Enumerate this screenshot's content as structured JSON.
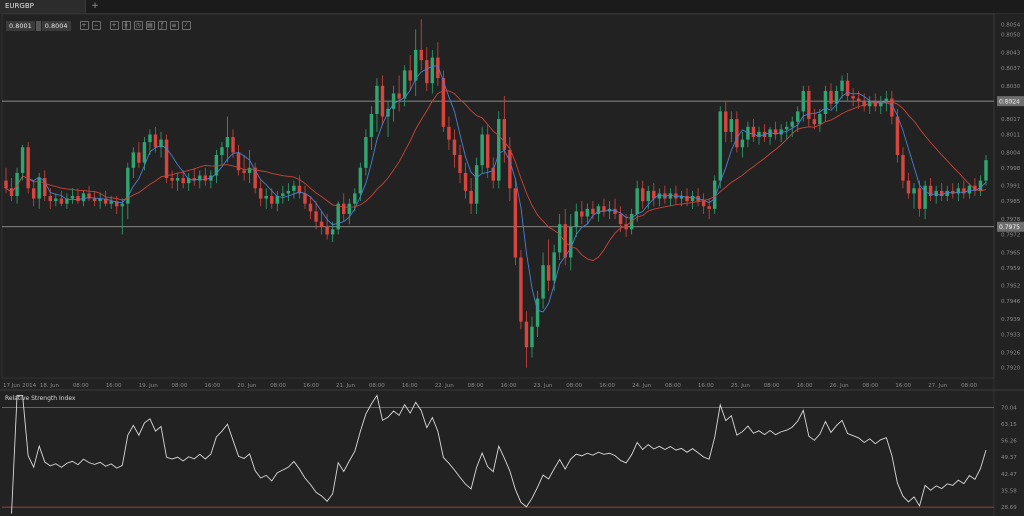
{
  "window": {
    "tab_label": "EURGBP",
    "add_tab_label": "+"
  },
  "toolbar": {
    "bid": "0.8001",
    "ask": "0.8004",
    "tools": [
      {
        "icon": "zoom-in-icon",
        "glyph": "+"
      },
      {
        "icon": "zoom-out-icon",
        "glyph": "−"
      },
      {
        "icon": "crosshair-icon",
        "glyph": "+"
      },
      {
        "icon": "candles-icon",
        "glyph": "╫"
      },
      {
        "icon": "timeframe-icon",
        "glyph": "◷"
      },
      {
        "icon": "template-icon",
        "glyph": "▤"
      },
      {
        "icon": "indicators-icon",
        "glyph": "ƒ"
      },
      {
        "icon": "objects-icon",
        "glyph": "≡"
      },
      {
        "icon": "draw-icon",
        "glyph": "⁄"
      }
    ]
  },
  "colors": {
    "background": "#222222",
    "bull": "#2fa672",
    "bear": "#d8453d",
    "ma_fast": "#4a7fd0",
    "ma_slow": "#c8453a",
    "rsi_line": "#d9d9d9",
    "rsi_upper": "#4e9a5a",
    "rsi_lower": "#c24a3c",
    "hline": "#a9a9a9"
  },
  "chart_data": [
    {
      "type": "candlestick",
      "title": "",
      "symbol": "EURGBP",
      "x_labels": [
        "17 Jun 2014",
        "18. Jun",
        "08:00",
        "16:00",
        "19. Jun",
        "08:00",
        "16:00",
        "20. Jun",
        "08:00",
        "16:00",
        "21. Jun",
        "08:00",
        "16:00",
        "22. Jun",
        "08:00",
        "16:00",
        "23. Jun",
        "08:00",
        "16:00",
        "24. Jun",
        "08:00",
        "16:00",
        "25. Jun",
        "08:00",
        "16:00",
        "26. Jun",
        "08:00",
        "16:00",
        "27. Jun",
        "08:00"
      ],
      "y_ticks": [
        "0.8054",
        "0.8050",
        "0.8043",
        "0.8037",
        "0.8030",
        "0.8024",
        "0.8017",
        "0.8011",
        "0.8004",
        "0.7998",
        "0.7991",
        "0.7985",
        "0.7978",
        "0.7972",
        "0.7965",
        "0.7959",
        "0.7952",
        "0.7946",
        "0.7939",
        "0.7933",
        "0.7926",
        "0.7920"
      ],
      "ylim": [
        0.7916,
        0.8058
      ],
      "horizontal_lines": [
        {
          "value": 0.8024,
          "label": "0.8024"
        },
        {
          "value": 0.7975,
          "label": "0.7975"
        }
      ],
      "ohlc": [
        [
          0.7993,
          0.7998,
          0.7988,
          0.799
        ],
        [
          0.799,
          0.7994,
          0.7985,
          0.7987
        ],
        [
          0.7987,
          0.7998,
          0.7984,
          0.7996
        ],
        [
          0.7996,
          0.8007,
          0.7993,
          0.8006
        ],
        [
          0.8006,
          0.8008,
          0.7988,
          0.799
        ],
        [
          0.799,
          0.7993,
          0.7983,
          0.7986
        ],
        [
          0.7986,
          0.7996,
          0.7982,
          0.7994
        ],
        [
          0.7994,
          0.7997,
          0.7985,
          0.7987
        ],
        [
          0.7987,
          0.799,
          0.7982,
          0.7985
        ],
        [
          0.7985,
          0.7988,
          0.7983,
          0.7986
        ],
        [
          0.7986,
          0.7989,
          0.7983,
          0.7984
        ],
        [
          0.7984,
          0.7988,
          0.7982,
          0.7986
        ],
        [
          0.7986,
          0.799,
          0.7984,
          0.7987
        ],
        [
          0.7987,
          0.799,
          0.7984,
          0.7985
        ],
        [
          0.7985,
          0.7989,
          0.7983,
          0.7988
        ],
        [
          0.7988,
          0.7991,
          0.7985,
          0.7986
        ],
        [
          0.7986,
          0.7989,
          0.7983,
          0.7985
        ],
        [
          0.7985,
          0.7988,
          0.7982,
          0.7986
        ],
        [
          0.7986,
          0.7989,
          0.7983,
          0.7984
        ],
        [
          0.7984,
          0.7987,
          0.7982,
          0.7985
        ],
        [
          0.7985,
          0.7987,
          0.798,
          0.7983
        ],
        [
          0.7983,
          0.7986,
          0.7972,
          0.7984
        ],
        [
          0.7984,
          0.8,
          0.7978,
          0.7998
        ],
        [
          0.7998,
          0.8006,
          0.7994,
          0.8004
        ],
        [
          0.8004,
          0.8008,
          0.7998,
          0.8
        ],
        [
          0.8,
          0.801,
          0.7997,
          0.8008
        ],
        [
          0.8008,
          0.8013,
          0.8003,
          0.8011
        ],
        [
          0.8011,
          0.8014,
          0.8004,
          0.8006
        ],
        [
          0.8006,
          0.8012,
          0.8002,
          0.8009
        ],
        [
          0.8009,
          0.8011,
          0.7992,
          0.7994
        ],
        [
          0.7994,
          0.7997,
          0.799,
          0.7993
        ],
        [
          0.7993,
          0.7996,
          0.7989,
          0.7994
        ],
        [
          0.7994,
          0.7997,
          0.799,
          0.7992
        ],
        [
          0.7992,
          0.7996,
          0.7989,
          0.7994
        ],
        [
          0.7994,
          0.7998,
          0.7991,
          0.7993
        ],
        [
          0.7993,
          0.7997,
          0.799,
          0.7995
        ],
        [
          0.7995,
          0.7998,
          0.7991,
          0.7993
        ],
        [
          0.7993,
          0.7997,
          0.799,
          0.7995
        ],
        [
          0.7995,
          0.8005,
          0.7992,
          0.8003
        ],
        [
          0.8003,
          0.8008,
          0.7999,
          0.8006
        ],
        [
          0.8006,
          0.8018,
          0.8,
          0.801
        ],
        [
          0.801,
          0.8013,
          0.8002,
          0.8004
        ],
        [
          0.8004,
          0.8007,
          0.7995,
          0.7997
        ],
        [
          0.7997,
          0.8003,
          0.7993,
          0.7996
        ],
        [
          0.7996,
          0.8005,
          0.7992,
          0.7998
        ],
        [
          0.7998,
          0.8,
          0.7988,
          0.799
        ],
        [
          0.799,
          0.7993,
          0.7983,
          0.7986
        ],
        [
          0.7986,
          0.799,
          0.7982,
          0.7987
        ],
        [
          0.7987,
          0.799,
          0.7982,
          0.7984
        ],
        [
          0.7984,
          0.7989,
          0.7981,
          0.7987
        ],
        [
          0.7987,
          0.7991,
          0.7984,
          0.7988
        ],
        [
          0.7988,
          0.7992,
          0.7985,
          0.7989
        ],
        [
          0.7989,
          0.7993,
          0.7986,
          0.7991
        ],
        [
          0.7991,
          0.7995,
          0.7986,
          0.7988
        ],
        [
          0.7988,
          0.7991,
          0.7982,
          0.7984
        ],
        [
          0.7984,
          0.7987,
          0.7978,
          0.7981
        ],
        [
          0.7981,
          0.7985,
          0.7974,
          0.7977
        ],
        [
          0.7977,
          0.7981,
          0.7972,
          0.7975
        ],
        [
          0.7975,
          0.798,
          0.797,
          0.7972
        ],
        [
          0.7972,
          0.7977,
          0.7969,
          0.7974
        ],
        [
          0.7974,
          0.7985,
          0.7972,
          0.7984
        ],
        [
          0.7984,
          0.7988,
          0.7977,
          0.798
        ],
        [
          0.798,
          0.7986,
          0.7976,
          0.7984
        ],
        [
          0.7984,
          0.799,
          0.7981,
          0.7988
        ],
        [
          0.7988,
          0.8,
          0.7985,
          0.7998
        ],
        [
          0.7998,
          0.8013,
          0.7995,
          0.801
        ],
        [
          0.801,
          0.8022,
          0.8005,
          0.8019
        ],
        [
          0.8019,
          0.8033,
          0.8012,
          0.803
        ],
        [
          0.803,
          0.8034,
          0.8015,
          0.8018
        ],
        [
          0.8018,
          0.8024,
          0.801,
          0.8021
        ],
        [
          0.8021,
          0.803,
          0.8016,
          0.8027
        ],
        [
          0.8027,
          0.8034,
          0.802,
          0.8025
        ],
        [
          0.8025,
          0.8038,
          0.8022,
          0.8036
        ],
        [
          0.8036,
          0.8042,
          0.8028,
          0.8032
        ],
        [
          0.8032,
          0.8052,
          0.8026,
          0.8044
        ],
        [
          0.8044,
          0.8056,
          0.8036,
          0.804
        ],
        [
          0.804,
          0.8045,
          0.8028,
          0.8031
        ],
        [
          0.8031,
          0.8044,
          0.8027,
          0.8041
        ],
        [
          0.8041,
          0.8047,
          0.803,
          0.8033
        ],
        [
          0.8033,
          0.8036,
          0.8012,
          0.8014
        ],
        [
          0.8014,
          0.8018,
          0.8005,
          0.8009
        ],
        [
          0.8009,
          0.8013,
          0.7998,
          0.8003
        ],
        [
          0.8003,
          0.8007,
          0.7992,
          0.7996
        ],
        [
          0.7996,
          0.8,
          0.7986,
          0.7989
        ],
        [
          0.7989,
          0.7994,
          0.798,
          0.7984
        ],
        [
          0.7984,
          0.8002,
          0.798,
          0.7999
        ],
        [
          0.7999,
          0.8014,
          0.7996,
          0.8011
        ],
        [
          0.8011,
          0.8015,
          0.7994,
          0.7998
        ],
        [
          0.7998,
          0.8002,
          0.799,
          0.7993
        ],
        [
          0.7993,
          0.802,
          0.799,
          0.8017
        ],
        [
          0.8017,
          0.8026,
          0.8,
          0.8005
        ],
        [
          0.8005,
          0.801,
          0.7985,
          0.799
        ],
        [
          0.799,
          0.7994,
          0.796,
          0.7963
        ],
        [
          0.7963,
          0.7966,
          0.7935,
          0.7938
        ],
        [
          0.7938,
          0.7942,
          0.792,
          0.7928
        ],
        [
          0.7928,
          0.794,
          0.7924,
          0.7936
        ],
        [
          0.7936,
          0.795,
          0.7932,
          0.7947
        ],
        [
          0.7947,
          0.7965,
          0.7943,
          0.796
        ],
        [
          0.796,
          0.797,
          0.795,
          0.7954
        ],
        [
          0.7954,
          0.7968,
          0.795,
          0.7965
        ],
        [
          0.7965,
          0.798,
          0.7962,
          0.7976
        ],
        [
          0.7976,
          0.7982,
          0.796,
          0.7963
        ],
        [
          0.7963,
          0.798,
          0.7958,
          0.7975
        ],
        [
          0.7975,
          0.7984,
          0.7971,
          0.7981
        ],
        [
          0.7981,
          0.7985,
          0.7976,
          0.7979
        ],
        [
          0.7979,
          0.7984,
          0.7976,
          0.7982
        ],
        [
          0.7982,
          0.7985,
          0.7978,
          0.798
        ],
        [
          0.798,
          0.7984,
          0.7977,
          0.7983
        ],
        [
          0.7983,
          0.7986,
          0.7979,
          0.7981
        ],
        [
          0.7981,
          0.7985,
          0.7978,
          0.7982
        ],
        [
          0.7982,
          0.7986,
          0.7978,
          0.798
        ],
        [
          0.798,
          0.7983,
          0.7973,
          0.7976
        ],
        [
          0.7976,
          0.798,
          0.7971,
          0.7974
        ],
        [
          0.7974,
          0.7982,
          0.7972,
          0.798
        ],
        [
          0.798,
          0.7993,
          0.7977,
          0.799
        ],
        [
          0.799,
          0.7993,
          0.7982,
          0.7985
        ],
        [
          0.7985,
          0.7991,
          0.7982,
          0.7989
        ],
        [
          0.7989,
          0.7992,
          0.7983,
          0.7986
        ],
        [
          0.7986,
          0.799,
          0.7983,
          0.7988
        ],
        [
          0.7988,
          0.7991,
          0.7984,
          0.7986
        ],
        [
          0.7986,
          0.799,
          0.7983,
          0.7988
        ],
        [
          0.7988,
          0.7991,
          0.7984,
          0.7986
        ],
        [
          0.7986,
          0.7989,
          0.7983,
          0.7987
        ],
        [
          0.7987,
          0.799,
          0.7983,
          0.7985
        ],
        [
          0.7985,
          0.7989,
          0.7982,
          0.7987
        ],
        [
          0.7987,
          0.799,
          0.7983,
          0.7985
        ],
        [
          0.7985,
          0.7988,
          0.798,
          0.7983
        ],
        [
          0.7983,
          0.7986,
          0.7978,
          0.7982
        ],
        [
          0.7982,
          0.7995,
          0.798,
          0.7993
        ],
        [
          0.7993,
          0.8022,
          0.799,
          0.802
        ],
        [
          0.802,
          0.8024,
          0.8008,
          0.8012
        ],
        [
          0.8012,
          0.802,
          0.8008,
          0.8017
        ],
        [
          0.8017,
          0.802,
          0.8004,
          0.8006
        ],
        [
          0.8006,
          0.8012,
          0.8002,
          0.8009
        ],
        [
          0.8009,
          0.8016,
          0.8006,
          0.8014
        ],
        [
          0.8014,
          0.8017,
          0.8008,
          0.801
        ],
        [
          0.801,
          0.8014,
          0.8007,
          0.8012
        ],
        [
          0.8012,
          0.8015,
          0.8008,
          0.801
        ],
        [
          0.801,
          0.8014,
          0.8007,
          0.8013
        ],
        [
          0.8013,
          0.8016,
          0.8009,
          0.8011
        ],
        [
          0.8011,
          0.8015,
          0.8008,
          0.8013
        ],
        [
          0.8013,
          0.8016,
          0.8009,
          0.8014
        ],
        [
          0.8014,
          0.8018,
          0.801,
          0.8016
        ],
        [
          0.8016,
          0.8022,
          0.8012,
          0.802
        ],
        [
          0.802,
          0.803,
          0.8016,
          0.8028
        ],
        [
          0.8028,
          0.803,
          0.8014,
          0.8017
        ],
        [
          0.8017,
          0.8021,
          0.8013,
          0.8015
        ],
        [
          0.8015,
          0.8021,
          0.8012,
          0.8019
        ],
        [
          0.8019,
          0.803,
          0.8016,
          0.8028
        ],
        [
          0.8028,
          0.8031,
          0.8021,
          0.8023
        ],
        [
          0.8023,
          0.803,
          0.802,
          0.8028
        ],
        [
          0.8028,
          0.8034,
          0.8025,
          0.8032
        ],
        [
          0.8032,
          0.8035,
          0.8024,
          0.8026
        ],
        [
          0.8026,
          0.8029,
          0.8022,
          0.8025
        ],
        [
          0.8025,
          0.8028,
          0.8021,
          0.8024
        ],
        [
          0.8024,
          0.8027,
          0.802,
          0.8022
        ],
        [
          0.8022,
          0.8026,
          0.8019,
          0.8024
        ],
        [
          0.8024,
          0.8027,
          0.802,
          0.8022
        ],
        [
          0.8022,
          0.8026,
          0.8019,
          0.8024
        ],
        [
          0.8024,
          0.8028,
          0.802,
          0.8025
        ],
        [
          0.8025,
          0.8028,
          0.8015,
          0.8018
        ],
        [
          0.8018,
          0.8021,
          0.8,
          0.8003
        ],
        [
          0.8003,
          0.8006,
          0.799,
          0.7993
        ],
        [
          0.7993,
          0.7996,
          0.7986,
          0.7988
        ],
        [
          0.7988,
          0.7992,
          0.7982,
          0.799
        ],
        [
          0.799,
          0.7993,
          0.7979,
          0.7982
        ],
        [
          0.7982,
          0.7993,
          0.7978,
          0.7991
        ],
        [
          0.7991,
          0.7994,
          0.7985,
          0.7987
        ],
        [
          0.7987,
          0.7991,
          0.7984,
          0.7989
        ],
        [
          0.7989,
          0.7992,
          0.7985,
          0.7987
        ],
        [
          0.7987,
          0.7991,
          0.7985,
          0.7989
        ],
        [
          0.7989,
          0.7992,
          0.7986,
          0.7988
        ],
        [
          0.7988,
          0.7992,
          0.7985,
          0.799
        ],
        [
          0.799,
          0.7993,
          0.7986,
          0.7988
        ],
        [
          0.7988,
          0.7992,
          0.7986,
          0.7991
        ],
        [
          0.7991,
          0.7994,
          0.7987,
          0.7989
        ],
        [
          0.7989,
          0.7995,
          0.7987,
          0.7993
        ],
        [
          0.7993,
          0.8003,
          0.7991,
          0.8001
        ]
      ],
      "moving_averages": [
        {
          "period": 5,
          "color_key": "ma_fast"
        },
        {
          "period": 15,
          "color_key": "ma_slow"
        }
      ]
    },
    {
      "type": "line",
      "title": "Relative Strength Index",
      "y_ticks": [
        "70.04",
        "63.15",
        "56.26",
        "49.37",
        "42.47",
        "35.58",
        "28.69"
      ],
      "ylim": [
        25.0,
        76.0
      ],
      "levels": [
        70.04,
        28.69
      ],
      "period": 14
    }
  ]
}
